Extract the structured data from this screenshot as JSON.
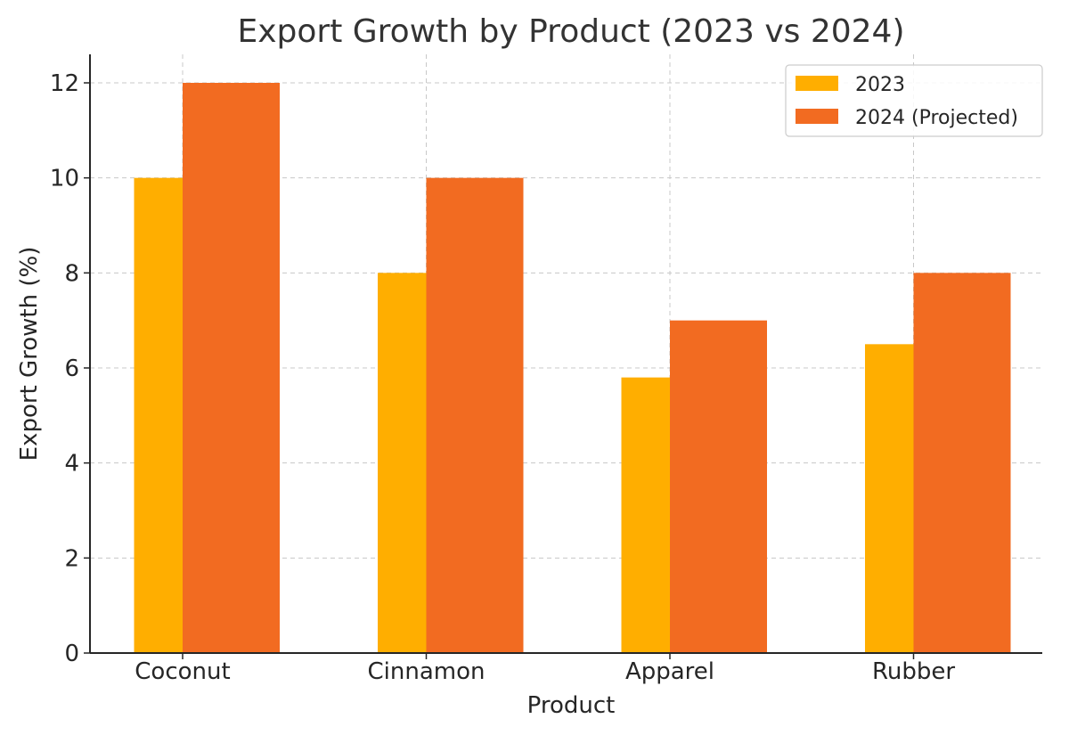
{
  "chart_data": {
    "type": "bar",
    "title": "Export Growth by Product (2023 vs 2024)",
    "xlabel": "Product",
    "ylabel": "Export Growth (%)",
    "categories": [
      "Coconut",
      "Cinnamon",
      "Apparel",
      "Rubber"
    ],
    "series": [
      {
        "name": "2023",
        "values": [
          10,
          8,
          5.8,
          6.5
        ],
        "color": "#FFAE00"
      },
      {
        "name": "2024 (Projected)",
        "values": [
          12,
          10,
          7,
          8
        ],
        "color": "#F26B21"
      }
    ],
    "ylim": [
      0,
      12.6
    ],
    "yticks": [
      0,
      2,
      4,
      6,
      8,
      10,
      12
    ],
    "grid": true,
    "legend_position": "top-right"
  }
}
